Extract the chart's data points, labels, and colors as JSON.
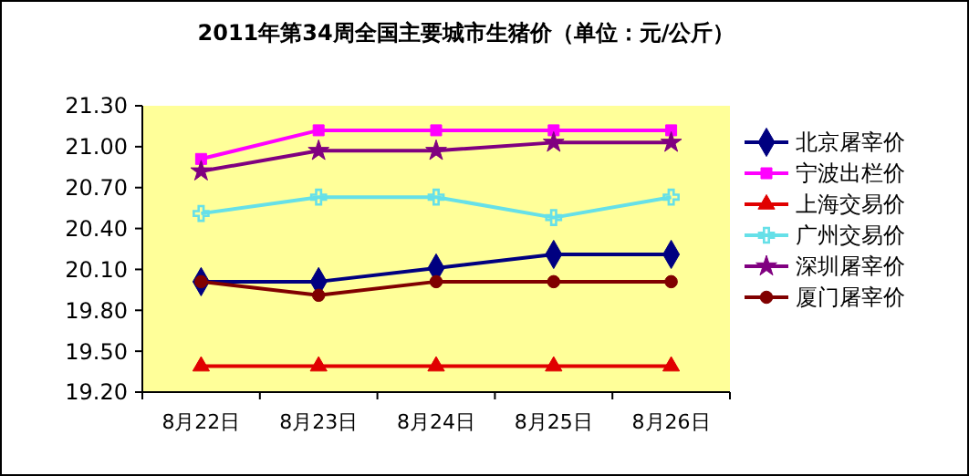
{
  "chart_data": {
    "type": "line",
    "title": "2011年第34周全国主要城市生猪价（单位：元/公斤）",
    "categories": [
      "8月22日",
      "8月23日",
      "8月24日",
      "8月25日",
      "8月26日"
    ],
    "ylim": [
      19.2,
      21.3
    ],
    "yticks": [
      {
        "value": 19.2,
        "label": "19.20"
      },
      {
        "value": 19.5,
        "label": "19.50"
      },
      {
        "value": 19.8,
        "label": "19.80"
      },
      {
        "value": 20.1,
        "label": "20.10"
      },
      {
        "value": 20.4,
        "label": "20.40"
      },
      {
        "value": 20.7,
        "label": "20.70"
      },
      {
        "value": 21.0,
        "label": "21.00"
      },
      {
        "value": 21.3,
        "label": "21.30"
      }
    ],
    "grid": false,
    "legend": "right",
    "line_style": "solid",
    "series": [
      {
        "name": "北京屠宰价",
        "color": "#000080",
        "marker": "diamond",
        "values": [
          20.01,
          20.01,
          20.11,
          20.21,
          20.21
        ]
      },
      {
        "name": "宁波出栏价",
        "color": "#ff00ff",
        "marker": "square",
        "values": [
          20.91,
          21.12,
          21.12,
          21.12,
          21.12
        ]
      },
      {
        "name": "上海交易价",
        "color": "#e00000",
        "marker": "triangle",
        "values": [
          19.39,
          19.39,
          19.39,
          19.39,
          19.39
        ]
      },
      {
        "name": "广州交易价",
        "color": "#66e0e8",
        "marker": "cross",
        "values": [
          20.51,
          20.63,
          20.63,
          20.48,
          20.63
        ]
      },
      {
        "name": "深圳屠宰价",
        "color": "#800080",
        "marker": "star",
        "values": [
          20.82,
          20.97,
          20.97,
          21.03,
          21.03
        ]
      },
      {
        "name": "厦门屠宰价",
        "color": "#800000",
        "marker": "circle",
        "values": [
          20.01,
          19.91,
          20.01,
          20.01,
          20.01
        ]
      }
    ]
  }
}
